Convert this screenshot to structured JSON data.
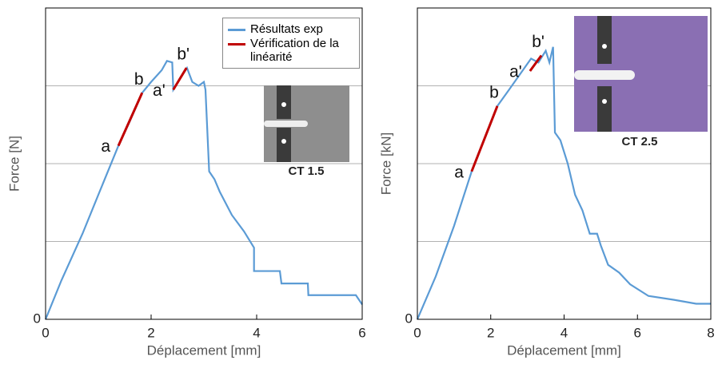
{
  "chart_data": [
    {
      "type": "line",
      "xlabel": "Déplacement [mm]",
      "ylabel": "Force [N]",
      "xlim": [
        0,
        6
      ],
      "xticks": [
        0,
        2,
        4,
        6
      ],
      "ylim": [
        0,
        4
      ],
      "yticks": [
        0
      ],
      "ygrid": [
        1,
        2,
        3
      ],
      "legend": "upper right",
      "inset_caption": "CT 1.5",
      "series": [
        {
          "name": "Résultats exp",
          "color": "#5b9bd5",
          "x": [
            0,
            0.3,
            0.7,
            1.0,
            1.38,
            1.6,
            1.83,
            2.0,
            2.2,
            2.3,
            2.4,
            2.42,
            2.55,
            2.68,
            2.78,
            2.9,
            3.0,
            3.03,
            3.1,
            3.2,
            3.3,
            3.53,
            3.76,
            3.95,
            3.95,
            4.44,
            4.47,
            4.97,
            4.98,
            5.88,
            6.0
          ],
          "values": [
            0,
            0.5,
            1.1,
            1.6,
            2.23,
            2.55,
            2.91,
            3.05,
            3.2,
            3.32,
            3.3,
            2.95,
            3.1,
            3.23,
            3.05,
            3.0,
            3.05,
            2.95,
            1.9,
            1.8,
            1.64,
            1.34,
            1.13,
            0.92,
            0.62,
            0.62,
            0.46,
            0.46,
            0.31,
            0.31,
            0.19
          ]
        },
        {
          "name": "Vérification de la linéarité",
          "color": "#c00000",
          "segments": [
            {
              "x": [
                1.38,
                1.83
              ],
              "values": [
                2.23,
                2.91
              ],
              "point_labels": [
                "a",
                "b"
              ]
            },
            {
              "x": [
                2.42,
                2.67
              ],
              "values": [
                2.95,
                3.23
              ],
              "point_labels": [
                "a'",
                "b'"
              ]
            }
          ]
        }
      ]
    },
    {
      "type": "line",
      "xlabel": "Déplacement [mm]",
      "ylabel": "Force [kN]",
      "xlim": [
        0,
        8
      ],
      "xticks": [
        0,
        2,
        4,
        6,
        8
      ],
      "ylim": [
        0,
        4
      ],
      "yticks": [
        0
      ],
      "ygrid": [
        1,
        2,
        3
      ],
      "inset_caption": "CT 2.5",
      "series": [
        {
          "color": "#5b9bd5",
          "x": [
            0,
            0.5,
            1.0,
            1.48,
            2.18,
            2.5,
            2.8,
            3.1,
            3.3,
            3.5,
            3.6,
            3.7,
            3.75,
            3.9,
            4.1,
            4.3,
            4.5,
            4.7,
            4.9,
            5.0,
            5.2,
            5.5,
            5.8,
            6.3,
            7.0,
            7.6,
            8.0
          ],
          "values": [
            0,
            0.55,
            1.2,
            1.9,
            2.74,
            2.95,
            3.15,
            3.35,
            3.3,
            3.45,
            3.3,
            3.5,
            2.4,
            2.3,
            2.0,
            1.6,
            1.4,
            1.1,
            1.1,
            0.95,
            0.7,
            0.6,
            0.45,
            0.3,
            0.25,
            0.2,
            0.2
          ]
        },
        {
          "color": "#c00000",
          "segments": [
            {
              "x": [
                1.48,
                2.18
              ],
              "values": [
                1.9,
                2.74
              ],
              "point_labels": [
                "a",
                "b"
              ]
            },
            {
              "x": [
                3.07,
                3.38
              ],
              "values": [
                3.19,
                3.39
              ],
              "point_labels": [
                "a'",
                "b'"
              ]
            }
          ]
        }
      ]
    }
  ]
}
